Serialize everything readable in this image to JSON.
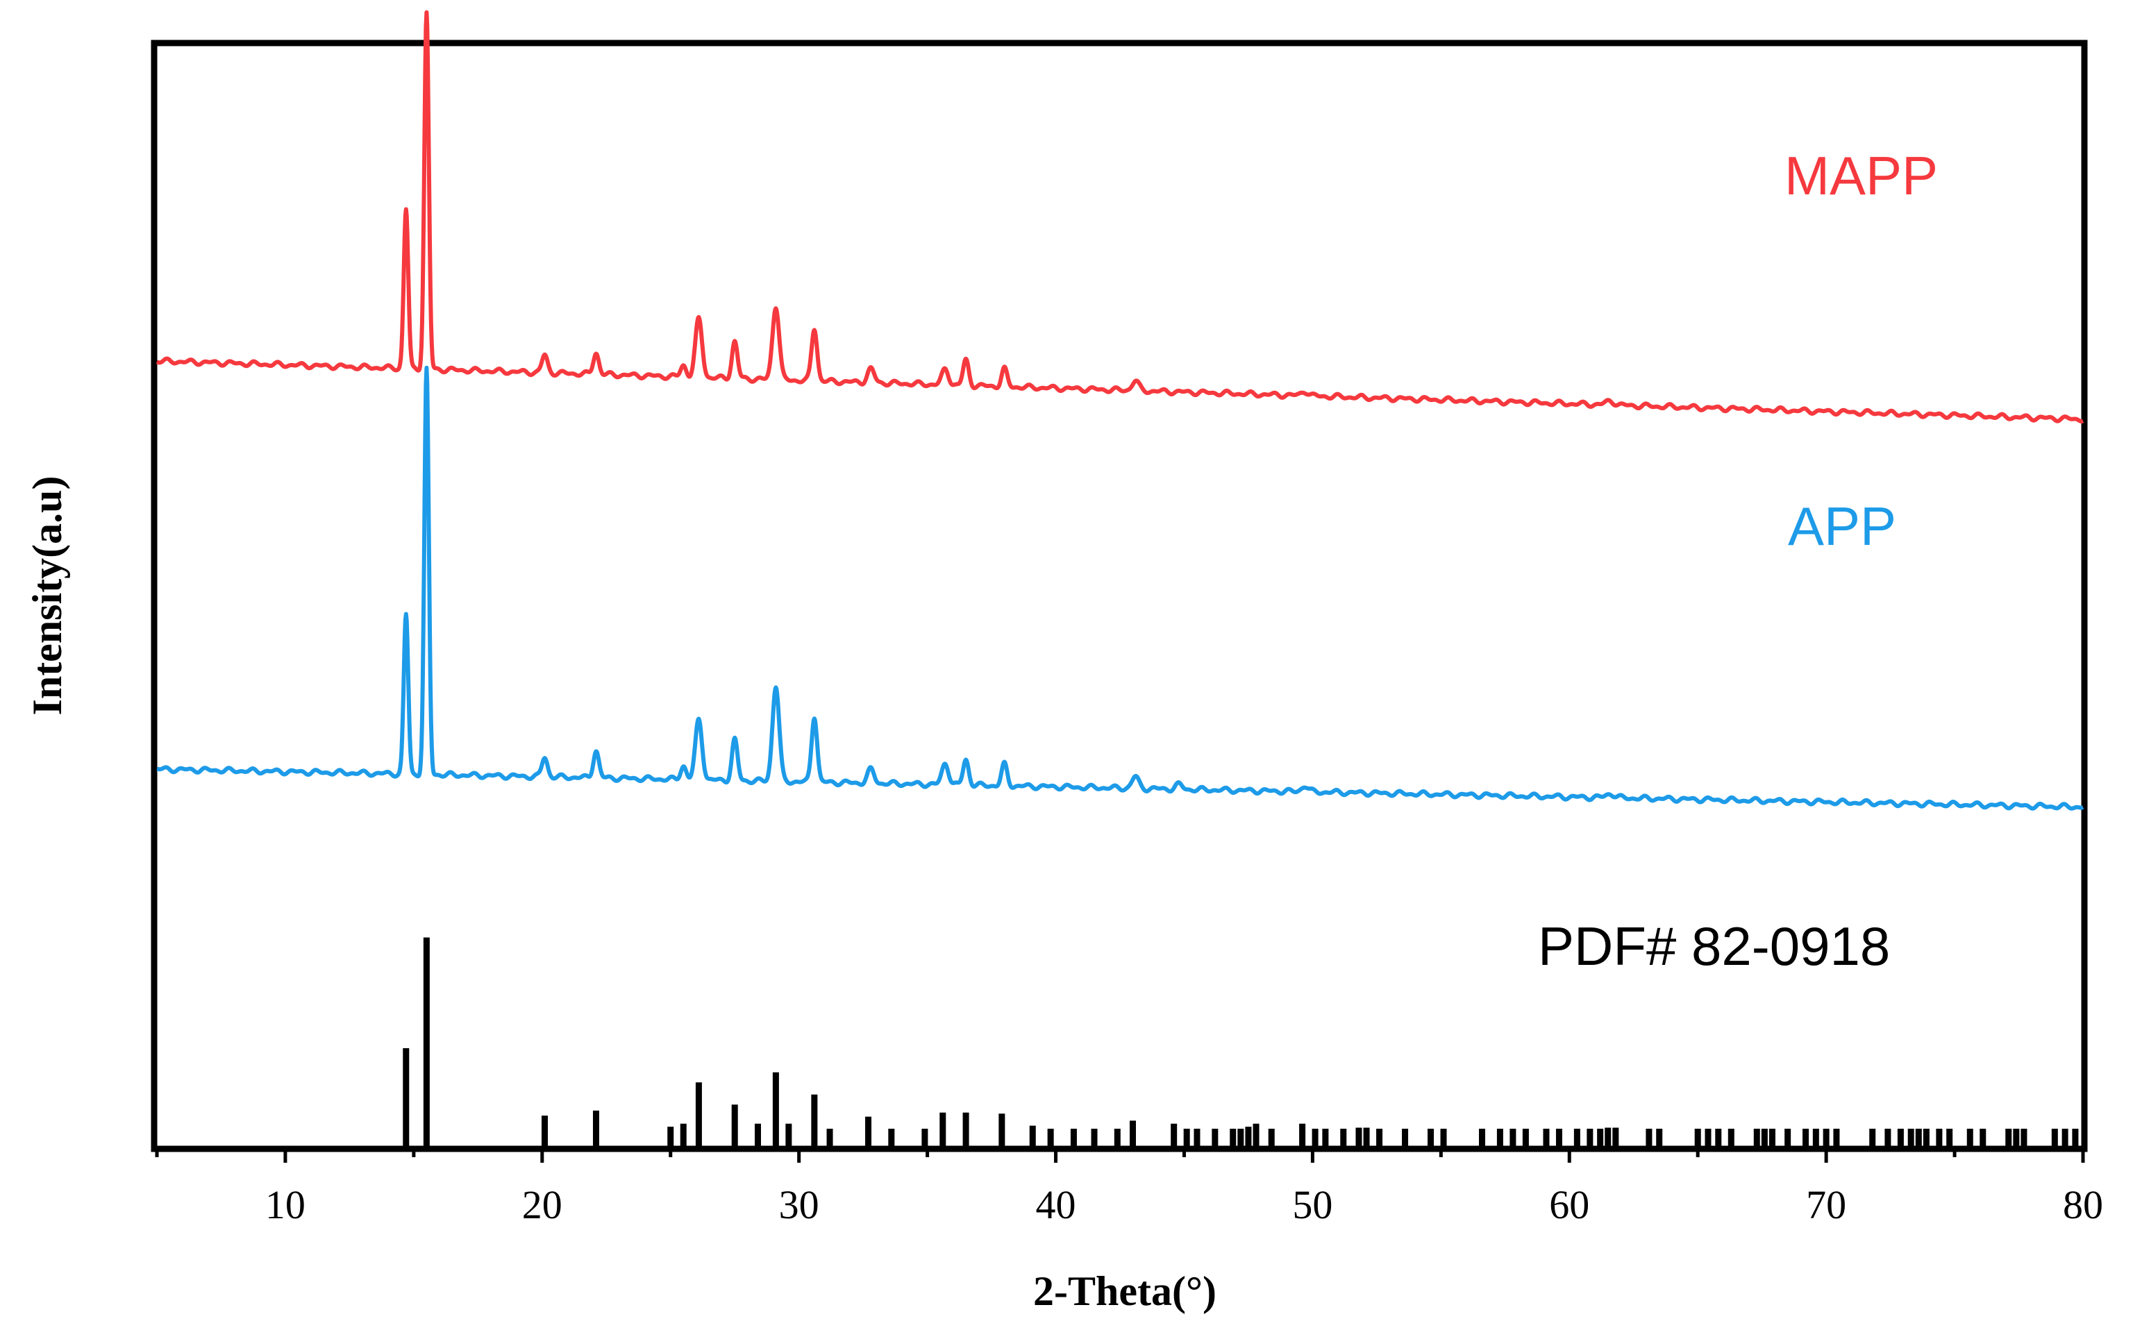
{
  "chart_data": {
    "type": "line",
    "title": "",
    "xlabel": "2-Theta(°)",
    "ylabel": "Intensity(a.u)",
    "xlim": [
      5,
      80
    ],
    "x_ticks": [
      10,
      20,
      30,
      40,
      50,
      60,
      70,
      80
    ],
    "grid": false,
    "y_tick_labels_shown": false,
    "series": [
      {
        "name": "MAPP",
        "color": "#f5393e",
        "baseline": 0.0,
        "baseline_slope": -0.02,
        "peaks": [
          [
            14.7,
            4.1,
            0.2
          ],
          [
            15.5,
            9.15,
            0.2
          ],
          [
            20.1,
            0.45,
            0.25
          ],
          [
            22.1,
            0.55,
            0.25
          ],
          [
            25.5,
            0.3,
            0.25
          ],
          [
            26.1,
            1.5,
            0.3
          ],
          [
            27.5,
            0.95,
            0.25
          ],
          [
            29.1,
            1.9,
            0.3
          ],
          [
            30.6,
            1.35,
            0.25
          ],
          [
            32.8,
            0.35,
            0.3
          ],
          [
            35.7,
            0.4,
            0.3
          ],
          [
            36.5,
            0.65,
            0.25
          ],
          [
            38.0,
            0.45,
            0.25
          ],
          [
            43.1,
            0.25,
            0.3
          ],
          [
            49.7,
            0.12,
            0.3
          ],
          [
            61.6,
            0.1,
            0.4
          ]
        ]
      },
      {
        "name": "APP",
        "color": "#1d9be8",
        "baseline": 0.0,
        "baseline_slope": -0.013,
        "peaks": [
          [
            14.7,
            4.1,
            0.2
          ],
          [
            15.5,
            10.4,
            0.2
          ],
          [
            20.1,
            0.5,
            0.25
          ],
          [
            22.1,
            0.7,
            0.25
          ],
          [
            25.5,
            0.35,
            0.25
          ],
          [
            26.1,
            1.55,
            0.3
          ],
          [
            27.5,
            1.05,
            0.25
          ],
          [
            29.1,
            2.45,
            0.3
          ],
          [
            30.6,
            1.7,
            0.25
          ],
          [
            32.8,
            0.35,
            0.3
          ],
          [
            35.7,
            0.55,
            0.3
          ],
          [
            36.5,
            0.65,
            0.25
          ],
          [
            38.0,
            0.55,
            0.25
          ],
          [
            43.1,
            0.3,
            0.3
          ],
          [
            44.8,
            0.12,
            0.3
          ],
          [
            49.7,
            0.15,
            0.3
          ],
          [
            61.6,
            0.1,
            0.4
          ]
        ]
      }
    ],
    "reference": {
      "name": "PDF# 82-0918",
      "color": "#000000",
      "lines": [
        [
          14.7,
          10
        ],
        [
          15.5,
          21
        ],
        [
          20.1,
          3.3
        ],
        [
          22.1,
          3.8
        ],
        [
          25.0,
          2.2
        ],
        [
          25.5,
          2.5
        ],
        [
          26.1,
          6.6
        ],
        [
          27.5,
          4.4
        ],
        [
          28.4,
          2.5
        ],
        [
          29.1,
          7.6
        ],
        [
          29.6,
          2.5
        ],
        [
          30.6,
          5.4
        ],
        [
          31.2,
          2.0
        ],
        [
          32.7,
          3.2
        ],
        [
          33.6,
          2.0
        ],
        [
          34.9,
          2.0
        ],
        [
          35.6,
          3.6
        ],
        [
          36.5,
          3.6
        ],
        [
          37.9,
          3.5
        ],
        [
          39.1,
          2.3
        ],
        [
          39.8,
          2.0
        ],
        [
          40.7,
          2.0
        ],
        [
          41.5,
          2.0
        ],
        [
          42.4,
          2.0
        ],
        [
          43.0,
          2.8
        ],
        [
          44.6,
          2.5
        ],
        [
          45.1,
          2.0
        ],
        [
          45.5,
          2.0
        ],
        [
          46.2,
          2.0
        ],
        [
          46.9,
          2.0
        ],
        [
          47.2,
          2.0
        ],
        [
          47.5,
          2.2
        ],
        [
          47.8,
          2.5
        ],
        [
          48.4,
          2.0
        ],
        [
          49.6,
          2.5
        ],
        [
          50.1,
          2.0
        ],
        [
          50.5,
          2.0
        ],
        [
          51.2,
          2.0
        ],
        [
          51.8,
          2.1
        ],
        [
          52.1,
          2.1
        ],
        [
          52.6,
          2.0
        ],
        [
          53.6,
          2.0
        ],
        [
          54.6,
          2.0
        ],
        [
          55.1,
          2.0
        ],
        [
          56.6,
          2.0
        ],
        [
          57.3,
          2.0
        ],
        [
          57.8,
          2.0
        ],
        [
          58.3,
          2.0
        ],
        [
          59.1,
          2.0
        ],
        [
          59.6,
          2.0
        ],
        [
          60.3,
          2.0
        ],
        [
          60.8,
          2.0
        ],
        [
          61.2,
          2.0
        ],
        [
          61.5,
          2.1
        ],
        [
          61.8,
          2.1
        ],
        [
          63.1,
          2.0
        ],
        [
          63.5,
          2.0
        ],
        [
          65.0,
          2.0
        ],
        [
          65.4,
          2.0
        ],
        [
          65.8,
          2.0
        ],
        [
          66.3,
          2.0
        ],
        [
          67.3,
          2.0
        ],
        [
          67.6,
          2.0
        ],
        [
          67.9,
          2.0
        ],
        [
          68.5,
          2.0
        ],
        [
          69.2,
          2.0
        ],
        [
          69.6,
          2.0
        ],
        [
          70.0,
          2.0
        ],
        [
          70.4,
          2.0
        ],
        [
          71.8,
          2.0
        ],
        [
          72.4,
          2.0
        ],
        [
          72.9,
          2.0
        ],
        [
          73.3,
          2.0
        ],
        [
          73.6,
          2.0
        ],
        [
          73.9,
          2.0
        ],
        [
          74.4,
          2.0
        ],
        [
          74.8,
          2.0
        ],
        [
          75.6,
          2.0
        ],
        [
          76.1,
          2.0
        ],
        [
          77.1,
          2.0
        ],
        [
          77.4,
          2.0
        ],
        [
          77.7,
          2.0
        ],
        [
          78.9,
          2.0
        ],
        [
          79.3,
          2.0
        ],
        [
          79.7,
          2.0
        ]
      ]
    }
  }
}
